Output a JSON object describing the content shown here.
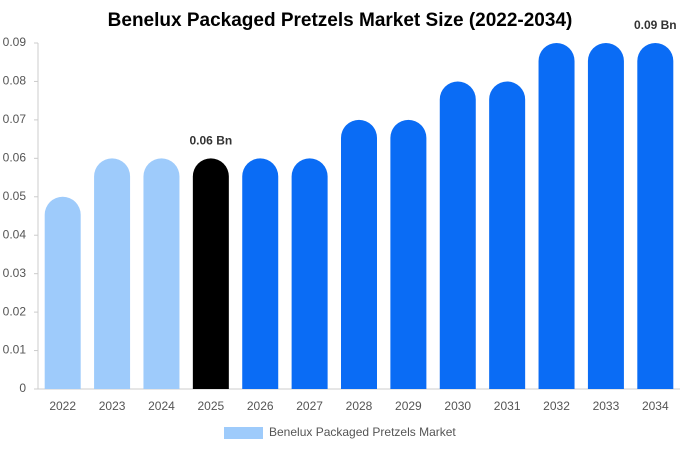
{
  "chart_data": {
    "type": "bar",
    "title": "Benelux Packaged Pretzels Market Size (2022-2034)",
    "categories": [
      "2022",
      "2023",
      "2024",
      "2025",
      "2026",
      "2027",
      "2028",
      "2029",
      "2030",
      "2031",
      "2032",
      "2033",
      "2034"
    ],
    "series": [
      {
        "name": "Benelux Packaged Pretzels Market",
        "color": "#9ecbfb",
        "values": [
          0.05,
          0.06,
          0.06,
          0.06,
          0.06,
          0.06,
          0.07,
          0.07,
          0.08,
          0.08,
          0.09,
          0.09,
          0.09
        ],
        "value_labels": [
          null,
          null,
          null,
          "0.06 Bn",
          null,
          null,
          null,
          null,
          null,
          null,
          null,
          null,
          "0.09 Bn"
        ],
        "colors": [
          "#9ecbfb",
          "#9ecbfb",
          "#9ecbfb",
          "#000000",
          "#0a6cf5",
          "#0a6cf5",
          "#0a6cf5",
          "#0a6cf5",
          "#0a6cf5",
          "#0a6cf5",
          "#0a6cf5",
          "#0a6cf5",
          "#0a6cf5"
        ]
      }
    ],
    "ylim": [
      0,
      0.09
    ],
    "yticks": [
      0,
      0.01,
      0.02,
      0.03,
      0.04,
      0.05,
      0.06,
      0.07,
      0.08,
      0.09
    ],
    "grid": false,
    "legend": "bottom"
  }
}
